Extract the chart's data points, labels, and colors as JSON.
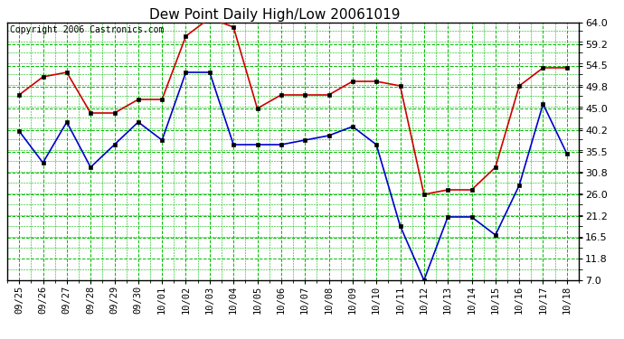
{
  "title": "Dew Point Daily High/Low 20061019",
  "copyright": "Copyright 2006 Castronics.com",
  "dates": [
    "09/25",
    "09/26",
    "09/27",
    "09/28",
    "09/29",
    "09/30",
    "10/01",
    "10/02",
    "10/03",
    "10/04",
    "10/05",
    "10/06",
    "10/07",
    "10/08",
    "10/09",
    "10/10",
    "10/11",
    "10/12",
    "10/13",
    "10/14",
    "10/15",
    "10/16",
    "10/17",
    "10/18"
  ],
  "high": [
    48,
    52,
    53,
    44,
    44,
    47,
    47,
    61,
    65,
    63,
    45,
    48,
    48,
    48,
    51,
    51,
    50,
    26,
    27,
    27,
    32,
    50,
    54,
    54
  ],
  "low": [
    40,
    33,
    42,
    32,
    37,
    42,
    38,
    53,
    53,
    37,
    37,
    37,
    38,
    39,
    41,
    37,
    19,
    7,
    21,
    21,
    17,
    28,
    46,
    35
  ],
  "ylim_min": 7.0,
  "ylim_max": 64.0,
  "yticks": [
    7.0,
    11.8,
    16.5,
    21.2,
    26.0,
    30.8,
    35.5,
    40.2,
    45.0,
    49.8,
    54.5,
    59.2,
    64.0
  ],
  "high_color": "#cc0000",
  "low_color": "#0000cc",
  "grid_color": "#00bb00",
  "bg_color": "#ffffff",
  "plot_bg_color": "#ffffff",
  "title_fontsize": 11,
  "copyright_fontsize": 7,
  "tick_fontsize": 7.5,
  "ytick_fontsize": 8
}
